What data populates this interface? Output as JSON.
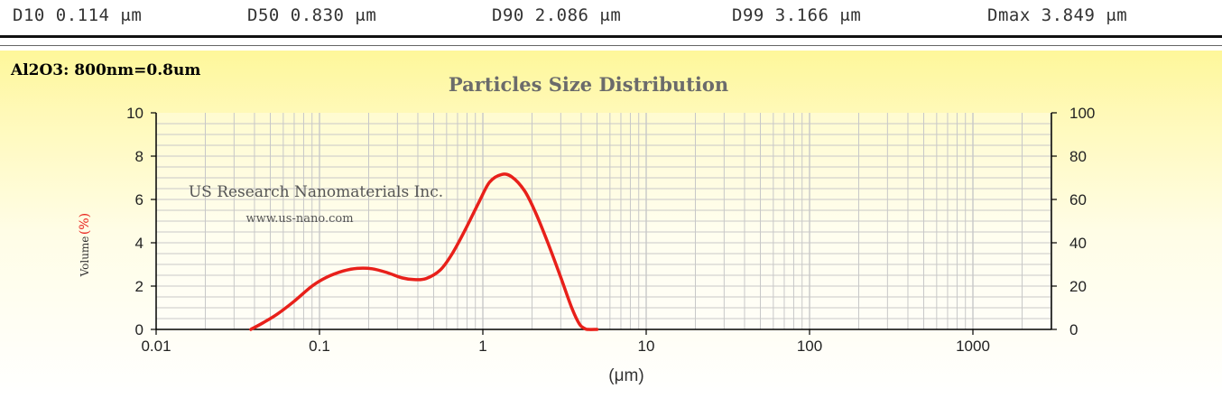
{
  "stats": [
    {
      "label": "D10 0.114 μm"
    },
    {
      "label": "D50 0.830 μm"
    },
    {
      "label": "D90 2.086 μm"
    },
    {
      "label": "D99 3.166 μm"
    },
    {
      "label": "Dmax 3.849 μm"
    }
  ],
  "annotation": "Al2O3: 800nm=0.8um",
  "watermark": {
    "company": "US Research Nanomaterials Inc.",
    "url": "www.us-nano.com"
  },
  "colors": {
    "curve": "#e8201a",
    "grid": "#c8c8c8",
    "axis": "#000000"
  },
  "chart_data": {
    "type": "line",
    "title": "Particles Size Distribution",
    "xlabel": "(μm)",
    "ylabel_text": "Volume",
    "ylabel_unit": "(%)",
    "xscale": "log",
    "xlim": [
      0.01,
      3000
    ],
    "ylim": [
      0,
      10
    ],
    "y2lim": [
      0,
      100
    ],
    "grid": true,
    "x_ticks": [
      {
        "value": 0.01,
        "label": "0.01"
      },
      {
        "value": 0.1,
        "label": "0.1"
      },
      {
        "value": 1,
        "label": "1"
      },
      {
        "value": 10,
        "label": "10"
      },
      {
        "value": 100,
        "label": "100"
      },
      {
        "value": 1000,
        "label": "1000"
      }
    ],
    "y_ticks": [
      {
        "value": 0,
        "label": "0"
      },
      {
        "value": 2,
        "label": "2"
      },
      {
        "value": 4,
        "label": "4"
      },
      {
        "value": 6,
        "label": "6"
      },
      {
        "value": 8,
        "label": "8"
      },
      {
        "value": 10,
        "label": "10"
      }
    ],
    "y2_ticks": [
      {
        "value": 0,
        "label": "0"
      },
      {
        "value": 20,
        "label": "20"
      },
      {
        "value": 40,
        "label": "40"
      },
      {
        "value": 60,
        "label": "60"
      },
      {
        "value": 80,
        "label": "80"
      },
      {
        "value": 100,
        "label": "100"
      }
    ],
    "series": [
      {
        "x": [
          0.038,
          0.045,
          0.055,
          0.07,
          0.09,
          0.11,
          0.14,
          0.17,
          0.21,
          0.26,
          0.32,
          0.38,
          0.45,
          0.55,
          0.65,
          0.78,
          0.95,
          1.1,
          1.3,
          1.5,
          1.8,
          2.1,
          2.5,
          3.0,
          3.5,
          3.9,
          4.2,
          4.4,
          5.0
        ],
        "y": [
          0,
          0.3,
          0.7,
          1.3,
          2.0,
          2.4,
          2.7,
          2.82,
          2.8,
          2.62,
          2.38,
          2.3,
          2.35,
          2.75,
          3.5,
          4.6,
          5.9,
          6.8,
          7.15,
          7.05,
          6.4,
          5.4,
          4.0,
          2.4,
          1.0,
          0.25,
          0.04,
          0,
          0
        ]
      }
    ]
  }
}
